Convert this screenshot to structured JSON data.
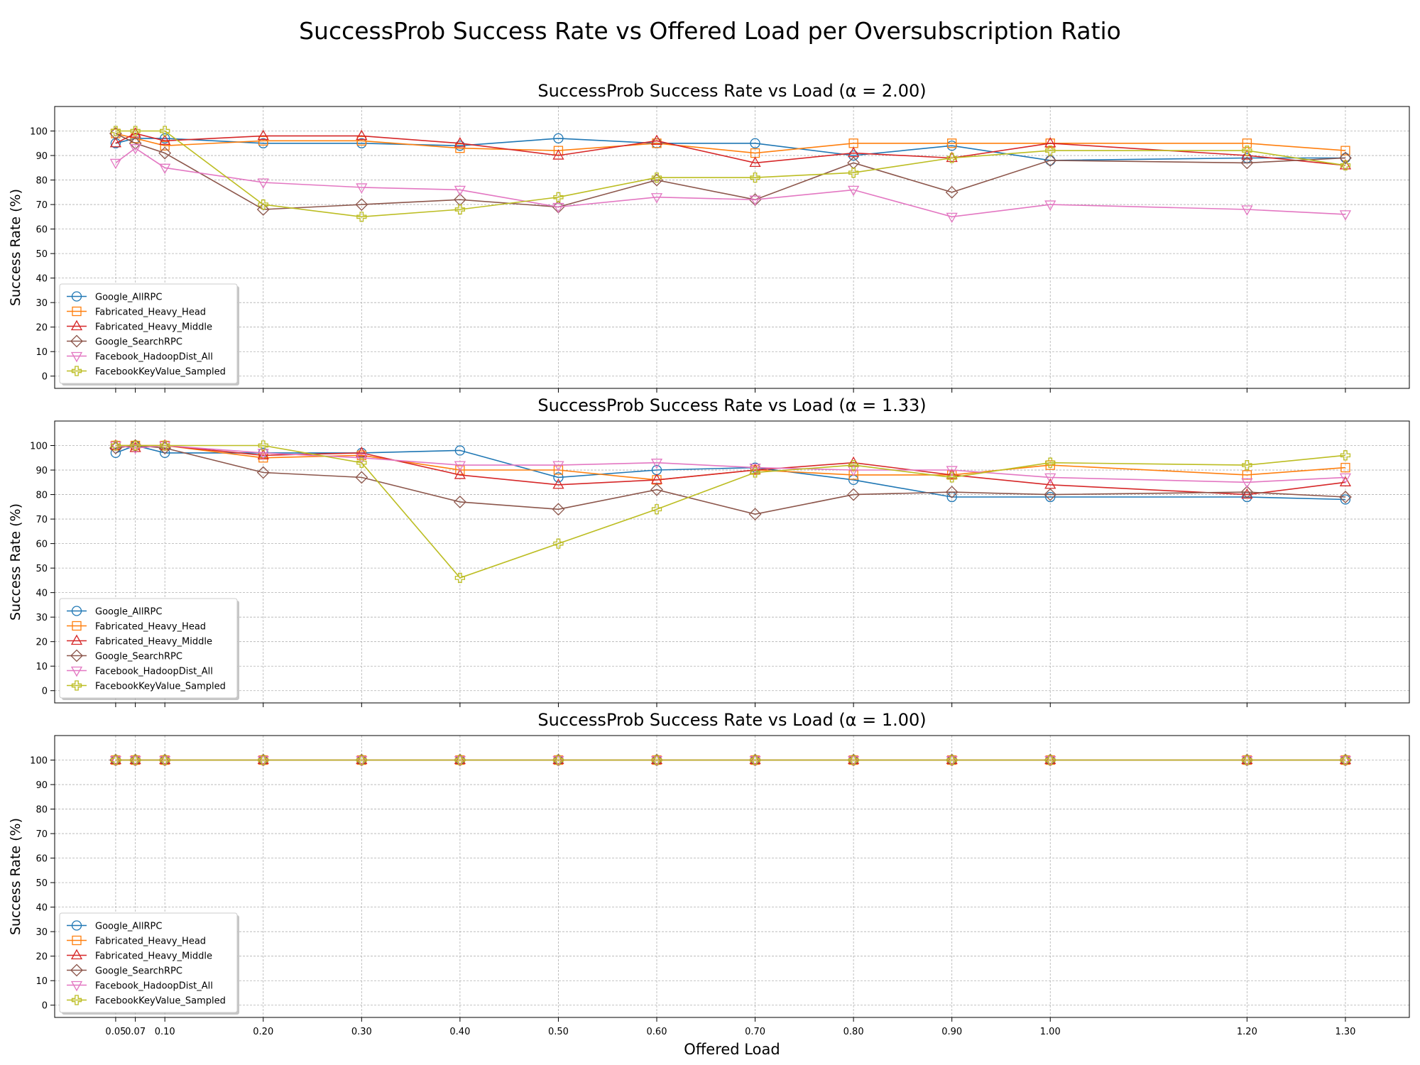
{
  "figure": {
    "suptitle": "SuccessProb Success Rate vs Offered Load per Oversubscription Ratio"
  },
  "colors": {
    "Google_AllRPC": "#1f77b4",
    "Fabricated_Heavy_Head": "#ff7f0e",
    "Fabricated_Heavy_Middle": "#d62728",
    "Google_SearchRPC": "#8c564b",
    "Facebook_HadoopDist_All": "#e377c2",
    "FacebookKeyValue_Sampled": "#bcbd22"
  },
  "markers": {
    "Google_AllRPC": "circle",
    "Fabricated_Heavy_Head": "square",
    "Fabricated_Heavy_Middle": "triangle-up",
    "Google_SearchRPC": "diamond",
    "Facebook_HadoopDist_All": "triangle-down",
    "FacebookKeyValue_Sampled": "plus"
  },
  "chart_data": [
    {
      "type": "line",
      "title": "SuccessProb Success Rate vs Load (α = 2.00)",
      "xlabel": "",
      "ylabel": "Success Rate (%)",
      "x": [
        0.05,
        0.07,
        0.1,
        0.2,
        0.3,
        0.4,
        0.5,
        0.6,
        0.7,
        0.8,
        0.9,
        1.0,
        1.2,
        1.3
      ],
      "x_tick_labels": [
        "",
        "",
        "",
        "",
        "",
        "",
        "",
        "",
        "",
        "",
        "",
        "",
        "",
        ""
      ],
      "xlim": [
        -0.012,
        1.365
      ],
      "y_ticks": [
        0,
        10,
        20,
        30,
        40,
        50,
        60,
        70,
        80,
        90,
        100
      ],
      "ylim": [
        -5,
        110
      ],
      "grid": true,
      "legend_position": "lower-left",
      "series": [
        {
          "name": "Google_AllRPC",
          "values": [
            95,
            97,
            97,
            95,
            95,
            94,
            97,
            95,
            95,
            90,
            94,
            88,
            89,
            89
          ]
        },
        {
          "name": "Fabricated_Heavy_Head",
          "values": [
            99,
            97,
            94,
            96,
            96,
            93,
            92,
            95,
            91,
            95,
            95,
            95,
            95,
            92
          ]
        },
        {
          "name": "Fabricated_Heavy_Middle",
          "values": [
            95,
            99,
            96,
            98,
            98,
            95,
            90,
            96,
            87,
            91,
            89,
            95,
            90,
            86
          ]
        },
        {
          "name": "Google_SearchRPC",
          "values": [
            99,
            95,
            91,
            68,
            70,
            72,
            69,
            80,
            72,
            87,
            75,
            88,
            87,
            89
          ]
        },
        {
          "name": "Facebook_HadoopDist_All",
          "values": [
            87,
            93,
            85,
            79,
            77,
            76,
            69,
            73,
            72,
            76,
            65,
            70,
            68,
            66
          ]
        },
        {
          "name": "FacebookKeyValue_Sampled",
          "values": [
            100,
            100,
            100,
            70,
            65,
            68,
            73,
            81,
            81,
            83,
            89,
            92,
            92,
            86
          ]
        }
      ]
    },
    {
      "type": "line",
      "title": "SuccessProb Success Rate vs Load (α = 1.33)",
      "xlabel": "",
      "ylabel": "Success Rate (%)",
      "x": [
        0.05,
        0.07,
        0.1,
        0.2,
        0.3,
        0.4,
        0.5,
        0.6,
        0.7,
        0.8,
        0.9,
        1.0,
        1.2,
        1.3
      ],
      "x_tick_labels": [
        "",
        "",
        "",
        "",
        "",
        "",
        "",
        "",
        "",
        "",
        "",
        "",
        "",
        ""
      ],
      "xlim": [
        -0.012,
        1.365
      ],
      "y_ticks": [
        0,
        10,
        20,
        30,
        40,
        50,
        60,
        70,
        80,
        90,
        100
      ],
      "ylim": [
        -5,
        110
      ],
      "grid": true,
      "legend_position": "lower-left",
      "series": [
        {
          "name": "Google_AllRPC",
          "values": [
            97,
            100,
            97,
            97,
            97,
            98,
            87,
            90,
            91,
            86,
            79,
            79,
            79,
            78
          ]
        },
        {
          "name": "Fabricated_Heavy_Head",
          "values": [
            100,
            100,
            100,
            95,
            96,
            90,
            90,
            86,
            90,
            88,
            88,
            92,
            88,
            91
          ]
        },
        {
          "name": "Fabricated_Heavy_Middle",
          "values": [
            100,
            99,
            100,
            96,
            97,
            88,
            84,
            86,
            90,
            93,
            88,
            84,
            80,
            85
          ]
        },
        {
          "name": "Google_SearchRPC",
          "values": [
            99,
            100,
            99,
            89,
            87,
            77,
            74,
            82,
            72,
            80,
            81,
            80,
            81,
            79
          ]
        },
        {
          "name": "Facebook_HadoopDist_All",
          "values": [
            100,
            99,
            100,
            97,
            95,
            92,
            92,
            93,
            91,
            90,
            90,
            87,
            85,
            87
          ]
        },
        {
          "name": "FacebookKeyValue_Sampled",
          "values": [
            100,
            100,
            100,
            100,
            93,
            46,
            60,
            74,
            89,
            92,
            87,
            93,
            92,
            96
          ]
        }
      ]
    },
    {
      "type": "line",
      "title": "SuccessProb Success Rate vs Load (α = 1.00)",
      "xlabel": "Offered Load",
      "ylabel": "Success Rate (%)",
      "x": [
        0.05,
        0.07,
        0.1,
        0.2,
        0.3,
        0.4,
        0.5,
        0.6,
        0.7,
        0.8,
        0.9,
        1.0,
        1.2,
        1.3
      ],
      "x_tick_labels": [
        "0.05",
        "0.07",
        "0.10",
        "0.20",
        "0.30",
        "0.40",
        "0.50",
        "0.60",
        "0.70",
        "0.80",
        "0.90",
        "1.00",
        "1.20",
        "1.30"
      ],
      "xlim": [
        -0.012,
        1.365
      ],
      "y_ticks": [
        0,
        10,
        20,
        30,
        40,
        50,
        60,
        70,
        80,
        90,
        100
      ],
      "ylim": [
        -5,
        110
      ],
      "grid": true,
      "legend_position": "lower-left",
      "series": [
        {
          "name": "Google_AllRPC",
          "values": [
            100,
            100,
            100,
            100,
            100,
            100,
            100,
            100,
            100,
            100,
            100,
            100,
            100,
            100
          ]
        },
        {
          "name": "Fabricated_Heavy_Head",
          "values": [
            100,
            100,
            100,
            100,
            100,
            100,
            100,
            100,
            100,
            100,
            100,
            100,
            100,
            100
          ]
        },
        {
          "name": "Fabricated_Heavy_Middle",
          "values": [
            100,
            100,
            100,
            100,
            100,
            100,
            100,
            100,
            100,
            100,
            100,
            100,
            100,
            100
          ]
        },
        {
          "name": "Google_SearchRPC",
          "values": [
            100,
            100,
            100,
            100,
            100,
            100,
            100,
            100,
            100,
            100,
            100,
            100,
            100,
            100
          ]
        },
        {
          "name": "Facebook_HadoopDist_All",
          "values": [
            100,
            100,
            100,
            100,
            100,
            100,
            100,
            100,
            100,
            100,
            100,
            100,
            100,
            100
          ]
        },
        {
          "name": "FacebookKeyValue_Sampled",
          "values": [
            100,
            100,
            100,
            100,
            100,
            100,
            100,
            100,
            100,
            100,
            100,
            100,
            100,
            100
          ]
        }
      ]
    }
  ]
}
